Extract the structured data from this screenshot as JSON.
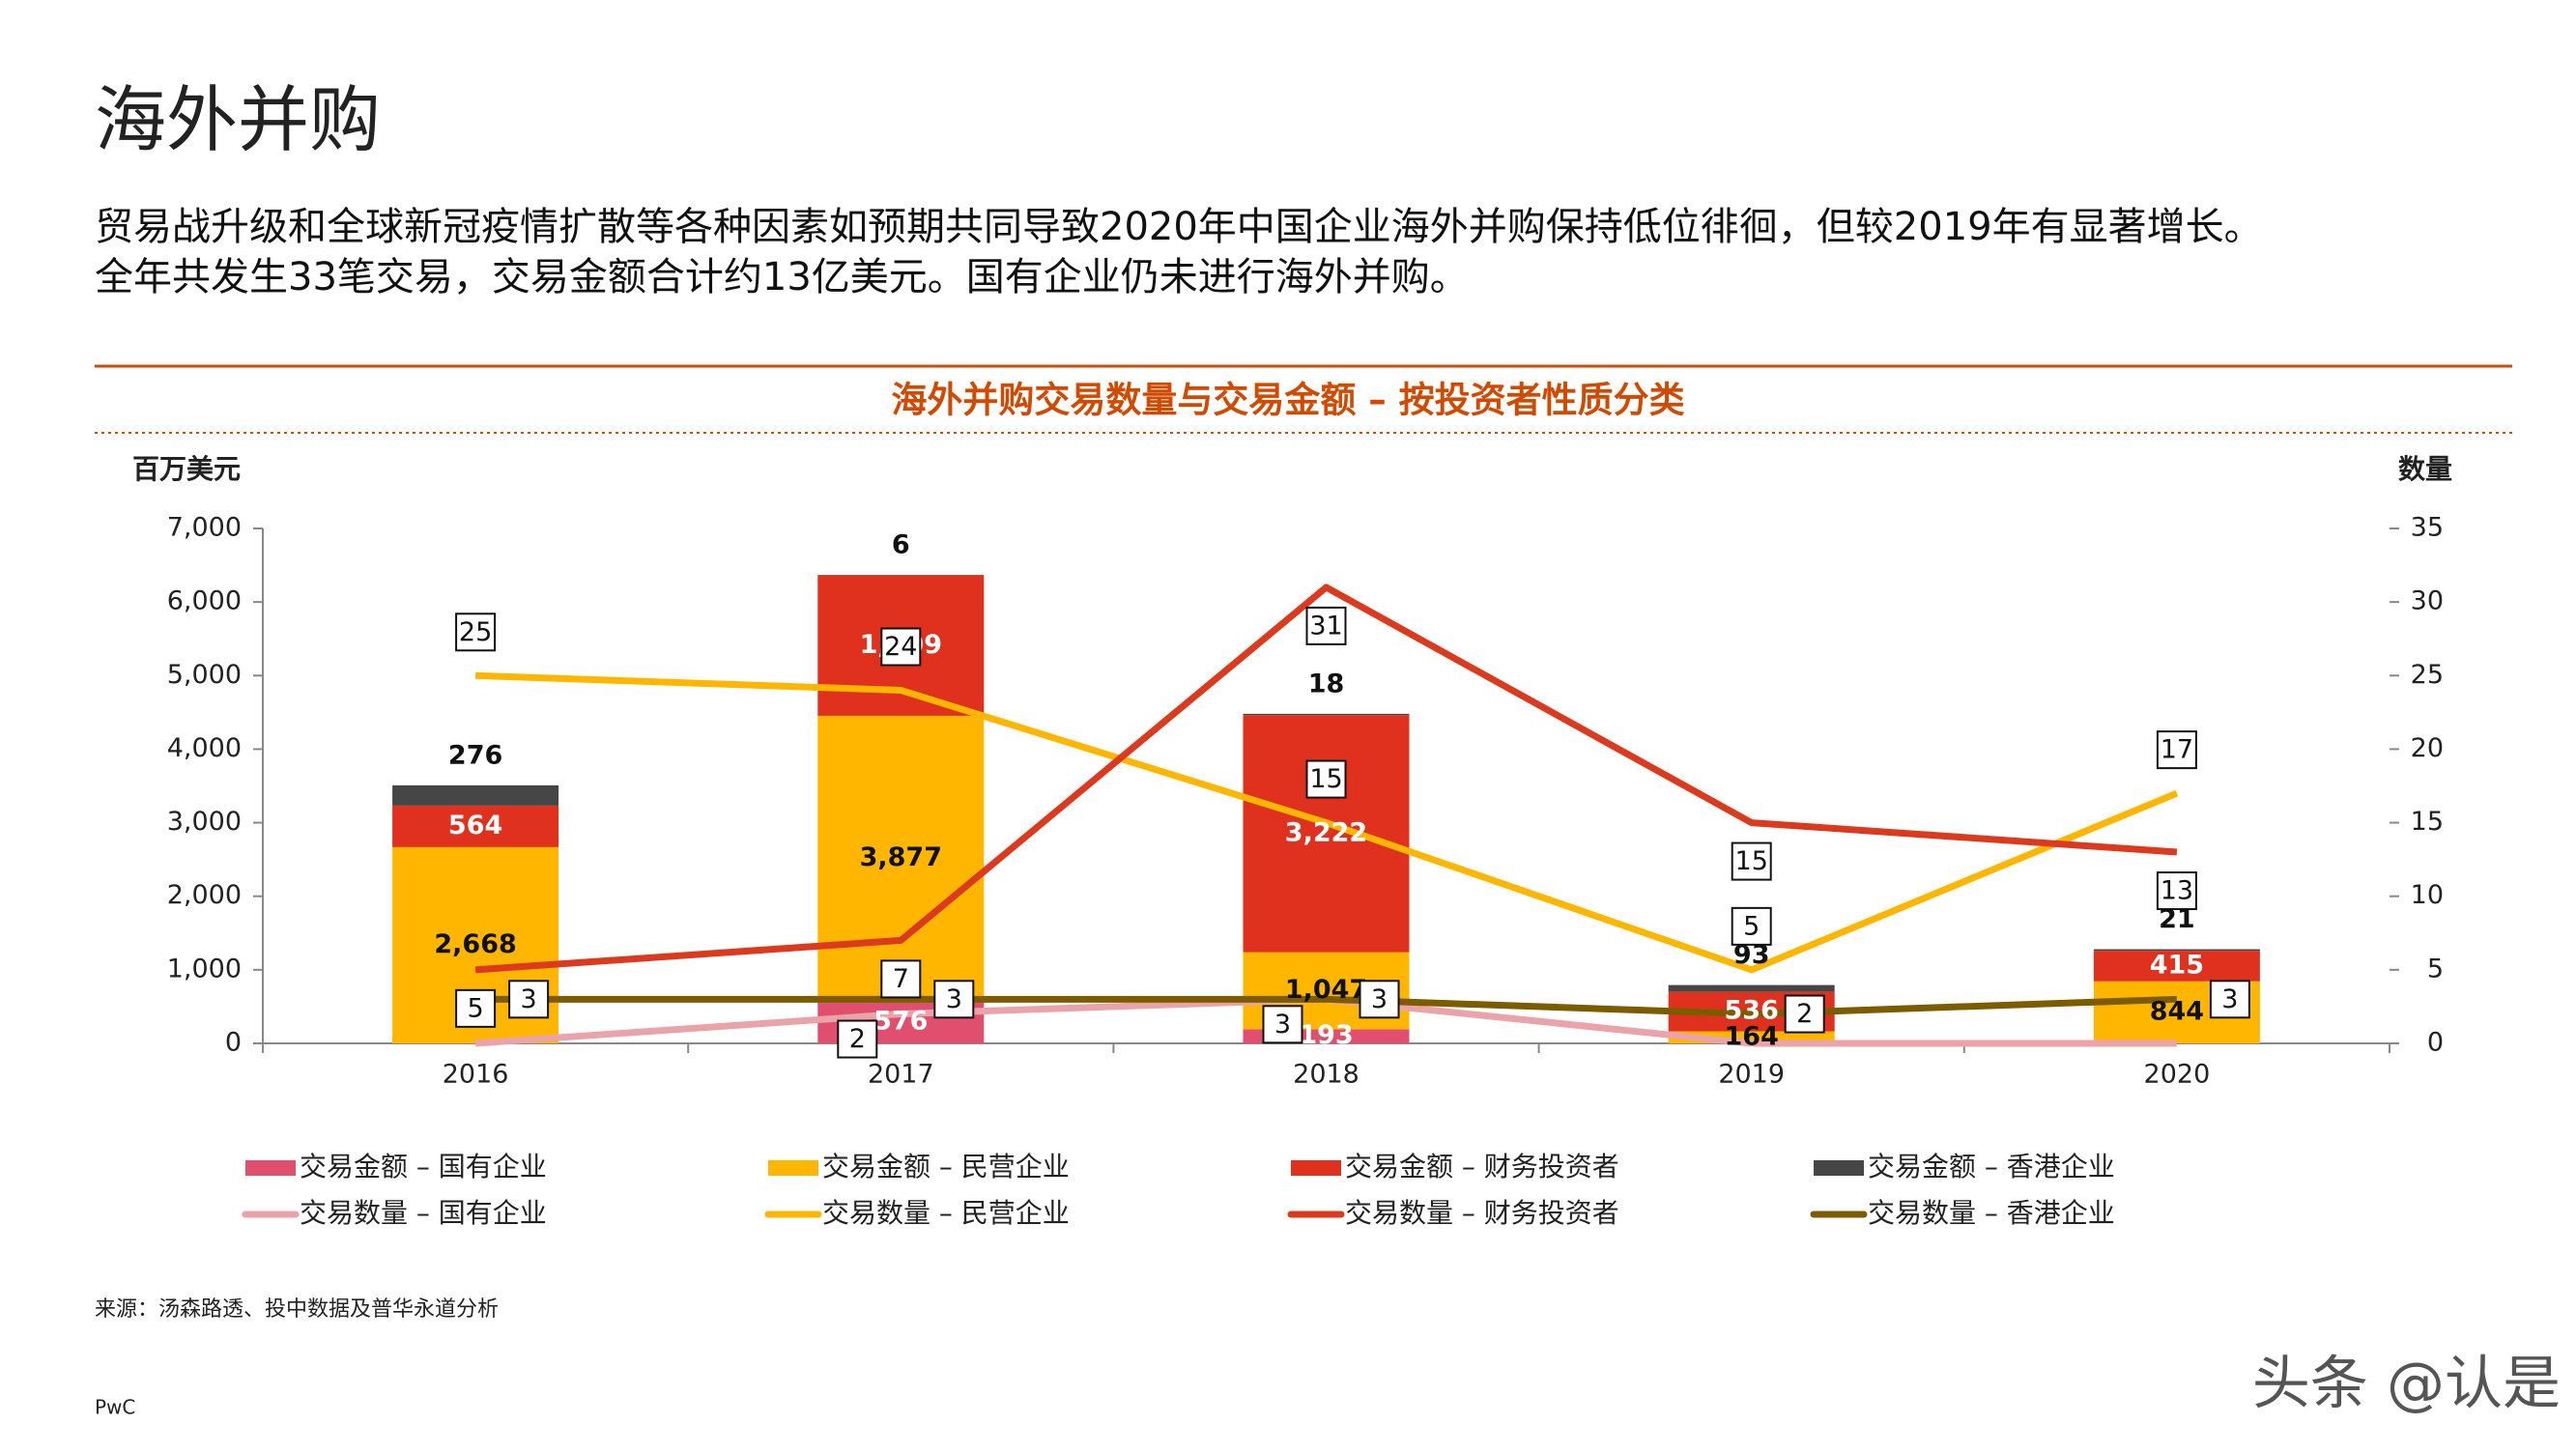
{
  "header": {
    "title": "海外并购",
    "lines": [
      "贸易战升级和全球新冠疫情扩散等各种因素如预期共同导致2020年中国企业海外并购保持低位徘徊，但较2019年有显著增长。",
      "全年共发生33笔交易，交易金额合计约13亿美元。国有企业仍未进行海外并购。"
    ]
  },
  "chart_data": {
    "type": "bar-line",
    "title": "海外并购交易数量与交易金额 – 按投资者性质分类",
    "y_label": "百万美元",
    "y2_label": "数量",
    "categories": [
      "2016",
      "2017",
      "2018",
      "2019",
      "2020"
    ],
    "ylim": [
      0,
      7000
    ],
    "yticks": [
      0,
      {
        "value": 1000,
        "label": "1,000"
      },
      {
        "value": 2000,
        "label": "2,000"
      },
      {
        "value": 3000,
        "label": "3,000"
      },
      {
        "value": 4000,
        "label": "4,000"
      },
      {
        "value": 5000,
        "label": "5,000"
      },
      {
        "value": 6000,
        "label": "6,000"
      },
      {
        "value": 7000,
        "label": "7,000"
      }
    ],
    "y2lim": [
      0,
      35
    ],
    "y2ticks": [
      0,
      5,
      10,
      15,
      20,
      25,
      30,
      35
    ],
    "series": [
      {
        "name": "交易金额 – 国有企业",
        "type": "bar",
        "color": "#e0506e",
        "values": [
          0,
          576,
          193,
          0,
          0
        ],
        "value_labels": [
          null,
          "576",
          "193",
          null,
          null
        ]
      },
      {
        "name": "交易金额 – 民营企业",
        "type": "bar",
        "color": "#ffb600",
        "values": [
          2668,
          3877,
          1047,
          164,
          844
        ],
        "value_labels": [
          "2,668",
          "3,877",
          "1,047",
          "164",
          "844"
        ]
      },
      {
        "name": "交易金额 – 财务投资者",
        "type": "bar",
        "color": "#e0301e",
        "values": [
          564,
          1909,
          3222,
          536,
          415
        ],
        "value_labels": [
          "564",
          "1,909",
          "3,222",
          "536",
          "415"
        ]
      },
      {
        "name": "交易金额 – 香港企业",
        "type": "bar",
        "color": "#464646",
        "values": [
          276,
          6,
          18,
          93,
          21
        ]
      },
      {
        "name": "交易数量 – 国有企业",
        "type": "line",
        "axis": "y2",
        "color": "#eba3aa",
        "values": [
          0,
          2,
          3,
          0,
          0
        ]
      },
      {
        "name": "交易数量 – 民营企业",
        "type": "line",
        "axis": "y2",
        "color": "#ffb600",
        "values": [
          25,
          24,
          15,
          5,
          17
        ]
      },
      {
        "name": "交易数量 – 财务投资者",
        "type": "line",
        "axis": "y2",
        "color": "#db3a1f",
        "values": [
          5,
          7,
          31,
          15,
          13
        ]
      },
      {
        "name": "交易数量 – 香港企业",
        "type": "line",
        "axis": "y2",
        "color": "#7d5c00",
        "values": [
          3,
          3,
          3,
          2,
          3
        ]
      }
    ]
  },
  "footer": {
    "source": "来源：汤森路透、投中数据及普华永道分析",
    "brand": "PwC",
    "watermark": "头条 @认是"
  }
}
